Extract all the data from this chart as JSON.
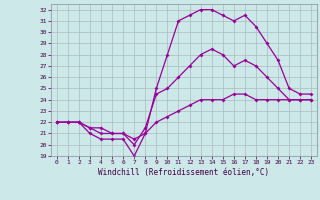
{
  "xlabel": "Windchill (Refroidissement éolien,°C)",
  "xlim": [
    -0.5,
    23.5
  ],
  "ylim": [
    19,
    32.5
  ],
  "yticks": [
    19,
    20,
    21,
    22,
    23,
    24,
    25,
    26,
    27,
    28,
    29,
    30,
    31,
    32
  ],
  "xticks": [
    0,
    1,
    2,
    3,
    4,
    5,
    6,
    7,
    8,
    9,
    10,
    11,
    12,
    13,
    14,
    15,
    16,
    17,
    18,
    19,
    20,
    21,
    22,
    23
  ],
  "bg_color": "#cce8e8",
  "grid_color": "#aabbbb",
  "line_color": "#990099",
  "line1_x": [
    0,
    1,
    2,
    3,
    4,
    5,
    6,
    7,
    8,
    9,
    10,
    11,
    12,
    13,
    14,
    15,
    16,
    17,
    18,
    19,
    20,
    21,
    22,
    23
  ],
  "line1_y": [
    22,
    22,
    22,
    21,
    20.5,
    20.5,
    20.5,
    19,
    21,
    25,
    28,
    31,
    31.5,
    32,
    32,
    31.5,
    31,
    31.5,
    30.5,
    29,
    27.5,
    25,
    24.5,
    24.5
  ],
  "line2_x": [
    0,
    1,
    2,
    3,
    4,
    5,
    6,
    7,
    8,
    9,
    10,
    11,
    12,
    13,
    14,
    15,
    16,
    17,
    18,
    19,
    20,
    21,
    22,
    23
  ],
  "line2_y": [
    22,
    22,
    22,
    21.5,
    21,
    21,
    21,
    20,
    21.5,
    24.5,
    25,
    26,
    27,
    28,
    28.5,
    28,
    27,
    27.5,
    27,
    26,
    25,
    24,
    24,
    24
  ],
  "line3_x": [
    0,
    1,
    2,
    3,
    4,
    5,
    6,
    7,
    8,
    9,
    10,
    11,
    12,
    13,
    14,
    15,
    16,
    17,
    18,
    19,
    20,
    21,
    22,
    23
  ],
  "line3_y": [
    22,
    22,
    22,
    21.5,
    21.5,
    21,
    21,
    20.5,
    21,
    22,
    22.5,
    23,
    23.5,
    24,
    24,
    24,
    24.5,
    24.5,
    24,
    24,
    24,
    24,
    24,
    24
  ]
}
